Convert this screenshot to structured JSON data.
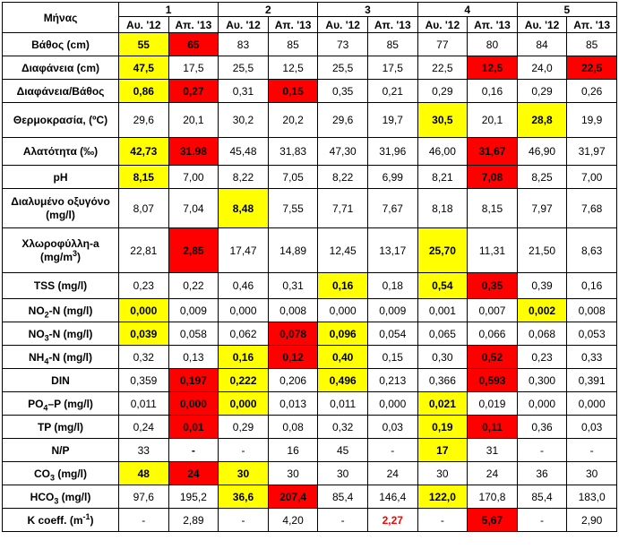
{
  "corner_label": "Μήνας",
  "stations": [
    "1",
    "2",
    "3",
    "4",
    "5"
  ],
  "periods": [
    "Αυ. '12",
    "Απ. '13"
  ],
  "colors": {
    "high": "#ffff00",
    "low": "#ff0000",
    "red_text": "#ff0000"
  },
  "rows": [
    {
      "label": "Βάθος (cm)",
      "cells": [
        {
          "v": "55",
          "s": "yellow"
        },
        {
          "v": "65",
          "s": "red"
        },
        {
          "v": "83"
        },
        {
          "v": "85"
        },
        {
          "v": "73"
        },
        {
          "v": "85"
        },
        {
          "v": "77"
        },
        {
          "v": "80"
        },
        {
          "v": "84"
        },
        {
          "v": "85"
        }
      ]
    },
    {
      "label": "Διαφάνεια (cm)",
      "cells": [
        {
          "v": "47,5",
          "s": "yellow"
        },
        {
          "v": "17,5"
        },
        {
          "v": "25,5"
        },
        {
          "v": "12,5"
        },
        {
          "v": "25,5"
        },
        {
          "v": "17,5"
        },
        {
          "v": "22,5"
        },
        {
          "v": "12,5",
          "s": "red"
        },
        {
          "v": "24,0"
        },
        {
          "v": "22,5",
          "s": "red"
        }
      ]
    },
    {
      "label": "Διαφάνεια/Βάθος",
      "cells": [
        {
          "v": "0,86",
          "s": "yellow"
        },
        {
          "v": "0,27",
          "s": "red"
        },
        {
          "v": "0,31"
        },
        {
          "v": "0,15",
          "s": "red"
        },
        {
          "v": "0,35"
        },
        {
          "v": "0,21"
        },
        {
          "v": "0,29"
        },
        {
          "v": "0,16"
        },
        {
          "v": "0,29"
        },
        {
          "v": "0,26"
        }
      ]
    },
    {
      "label": "Θερμοκρασία, (ºC)",
      "cells": [
        {
          "v": "29,6"
        },
        {
          "v": "20,1"
        },
        {
          "v": "30,2"
        },
        {
          "v": "20,2"
        },
        {
          "v": "29,6"
        },
        {
          "v": "19,7"
        },
        {
          "v": "30,5",
          "s": "yellow"
        },
        {
          "v": "20,1"
        },
        {
          "v": "28,8",
          "s": "yellow"
        },
        {
          "v": "19,9"
        }
      ]
    },
    {
      "label": "Αλατότητα (‰)",
      "cells": [
        {
          "v": "42,73",
          "s": "yellow"
        },
        {
          "v": "31.98",
          "s": "red"
        },
        {
          "v": "45,48"
        },
        {
          "v": "31,83"
        },
        {
          "v": "47,30"
        },
        {
          "v": "31,96"
        },
        {
          "v": "46,00"
        },
        {
          "v": "31,67",
          "s": "red"
        },
        {
          "v": "46,90"
        },
        {
          "v": "31,97"
        }
      ]
    },
    {
      "label": "pH",
      "cells": [
        {
          "v": "8,15",
          "s": "yellow"
        },
        {
          "v": "7,00"
        },
        {
          "v": "8,22"
        },
        {
          "v": "7,05"
        },
        {
          "v": "8,22"
        },
        {
          "v": "6,99"
        },
        {
          "v": "8,21"
        },
        {
          "v": "7,08",
          "s": "red"
        },
        {
          "v": "8,25"
        },
        {
          "v": "7,00"
        }
      ]
    },
    {
      "label": "Διαλυμένο οξυγόνο (mg/l)",
      "cells": [
        {
          "v": "8,07"
        },
        {
          "v": "7,04"
        },
        {
          "v": "8,48",
          "s": "yellow"
        },
        {
          "v": "7,55"
        },
        {
          "v": "7,71"
        },
        {
          "v": "7,67"
        },
        {
          "v": "8,18"
        },
        {
          "v": "8,15"
        },
        {
          "v": "7,97"
        },
        {
          "v": "7,68"
        }
      ]
    },
    {
      "label": "Χλωροφύλλη-a (mg/m3)",
      "cells": [
        {
          "v": "22,81"
        },
        {
          "v": "2,85",
          "s": "red"
        },
        {
          "v": "17,47"
        },
        {
          "v": "14,89"
        },
        {
          "v": "12,45"
        },
        {
          "v": "13,17"
        },
        {
          "v": "25,70",
          "s": "yellow"
        },
        {
          "v": "11,31"
        },
        {
          "v": "21,50"
        },
        {
          "v": "8,63"
        }
      ]
    },
    {
      "label": "TSS (mg/l)",
      "cells": [
        {
          "v": "0,23"
        },
        {
          "v": "0,22"
        },
        {
          "v": "0,46"
        },
        {
          "v": "0,31"
        },
        {
          "v": "0,16",
          "s": "yellow"
        },
        {
          "v": "0,18"
        },
        {
          "v": "0,54",
          "s": "yellow"
        },
        {
          "v": "0,35",
          "s": "red"
        },
        {
          "v": "0,39"
        },
        {
          "v": "0,16"
        }
      ]
    },
    {
      "label": "NO2-N (mg/l)",
      "cells": [
        {
          "v": "0,000",
          "s": "yellow"
        },
        {
          "v": "0,009"
        },
        {
          "v": "0,000"
        },
        {
          "v": "0,008"
        },
        {
          "v": "0,000"
        },
        {
          "v": "0,009"
        },
        {
          "v": "0,001"
        },
        {
          "v": "0,007"
        },
        {
          "v": "0,002",
          "s": "yellow"
        },
        {
          "v": "0,008"
        }
      ]
    },
    {
      "label": "NO3-N (mg/l)",
      "cells": [
        {
          "v": "0,039",
          "s": "yellow"
        },
        {
          "v": "0,058"
        },
        {
          "v": "0,062"
        },
        {
          "v": "0,078",
          "s": "red"
        },
        {
          "v": "0,096",
          "s": "yellow"
        },
        {
          "v": "0,054"
        },
        {
          "v": "0,065"
        },
        {
          "v": "0,066"
        },
        {
          "v": "0,068"
        },
        {
          "v": "0,053"
        }
      ]
    },
    {
      "label": "NH4-N (mg/l)",
      "cells": [
        {
          "v": "0,32"
        },
        {
          "v": "0,13"
        },
        {
          "v": "0,16",
          "s": "yellow"
        },
        {
          "v": "0,12",
          "s": "red"
        },
        {
          "v": "0,40",
          "s": "yellow"
        },
        {
          "v": "0,15"
        },
        {
          "v": "0,30"
        },
        {
          "v": "0,52",
          "s": "red"
        },
        {
          "v": "0,23"
        },
        {
          "v": "0,33"
        }
      ]
    },
    {
      "label": "DIN",
      "cells": [
        {
          "v": "0,359"
        },
        {
          "v": "0,197",
          "s": "red"
        },
        {
          "v": "0,222",
          "s": "yellow"
        },
        {
          "v": "0,206"
        },
        {
          "v": "0,496",
          "s": "yellow"
        },
        {
          "v": "0,213"
        },
        {
          "v": "0,366"
        },
        {
          "v": "0,593",
          "s": "red"
        },
        {
          "v": "0,300"
        },
        {
          "v": "0,391"
        }
      ]
    },
    {
      "label": "PO4–P (mg/l)",
      "cells": [
        {
          "v": "0,011"
        },
        {
          "v": "0,000",
          "s": "red"
        },
        {
          "v": "0,000",
          "s": "yellow"
        },
        {
          "v": "0,013"
        },
        {
          "v": "0,011"
        },
        {
          "v": "0,000"
        },
        {
          "v": "0,021",
          "s": "yellow"
        },
        {
          "v": "0,019"
        },
        {
          "v": "0,000"
        },
        {
          "v": "0,000"
        }
      ]
    },
    {
      "label": "TP (mg/l)",
      "cells": [
        {
          "v": "0,24"
        },
        {
          "v": "0,01",
          "s": "red"
        },
        {
          "v": "0,29"
        },
        {
          "v": "0,08"
        },
        {
          "v": "0,32"
        },
        {
          "v": "0,03"
        },
        {
          "v": "0,19",
          "s": "yellow"
        },
        {
          "v": "0,11",
          "s": "red"
        },
        {
          "v": "0,36"
        },
        {
          "v": "0,03"
        }
      ]
    },
    {
      "label": "N/P",
      "cells": [
        {
          "v": "33"
        },
        {
          "v": "-",
          "s": "bold"
        },
        {
          "v": "-"
        },
        {
          "v": "16"
        },
        {
          "v": "45"
        },
        {
          "v": "-"
        },
        {
          "v": "17",
          "s": "yellow"
        },
        {
          "v": "31"
        },
        {
          "v": "-"
        },
        {
          "v": "-"
        }
      ]
    },
    {
      "label": "CO3 (mg/l)",
      "cells": [
        {
          "v": "48",
          "s": "yellow"
        },
        {
          "v": "24",
          "s": "red"
        },
        {
          "v": "30",
          "s": "yellow"
        },
        {
          "v": "30"
        },
        {
          "v": "30"
        },
        {
          "v": "24"
        },
        {
          "v": "30"
        },
        {
          "v": "24"
        },
        {
          "v": "36"
        },
        {
          "v": "30"
        }
      ]
    },
    {
      "label": "HCO3 (mg/l)",
      "cells": [
        {
          "v": "97,6"
        },
        {
          "v": "195,2"
        },
        {
          "v": "36,6",
          "s": "yellow"
        },
        {
          "v": "207,4",
          "s": "red"
        },
        {
          "v": "85,4"
        },
        {
          "v": "146,4"
        },
        {
          "v": "122,0",
          "s": "yellow"
        },
        {
          "v": "170,8"
        },
        {
          "v": "85,4"
        },
        {
          "v": "183,0"
        }
      ]
    },
    {
      "label": "K coeff. (m-1)",
      "cells": [
        {
          "v": "-"
        },
        {
          "v": "2,89"
        },
        {
          "v": "-"
        },
        {
          "v": "4,20"
        },
        {
          "v": "-"
        },
        {
          "v": "2,27",
          "s": "redtext"
        },
        {
          "v": "-"
        },
        {
          "v": "5,67",
          "s": "red"
        },
        {
          "v": "-"
        },
        {
          "v": "2,90"
        }
      ]
    }
  ]
}
